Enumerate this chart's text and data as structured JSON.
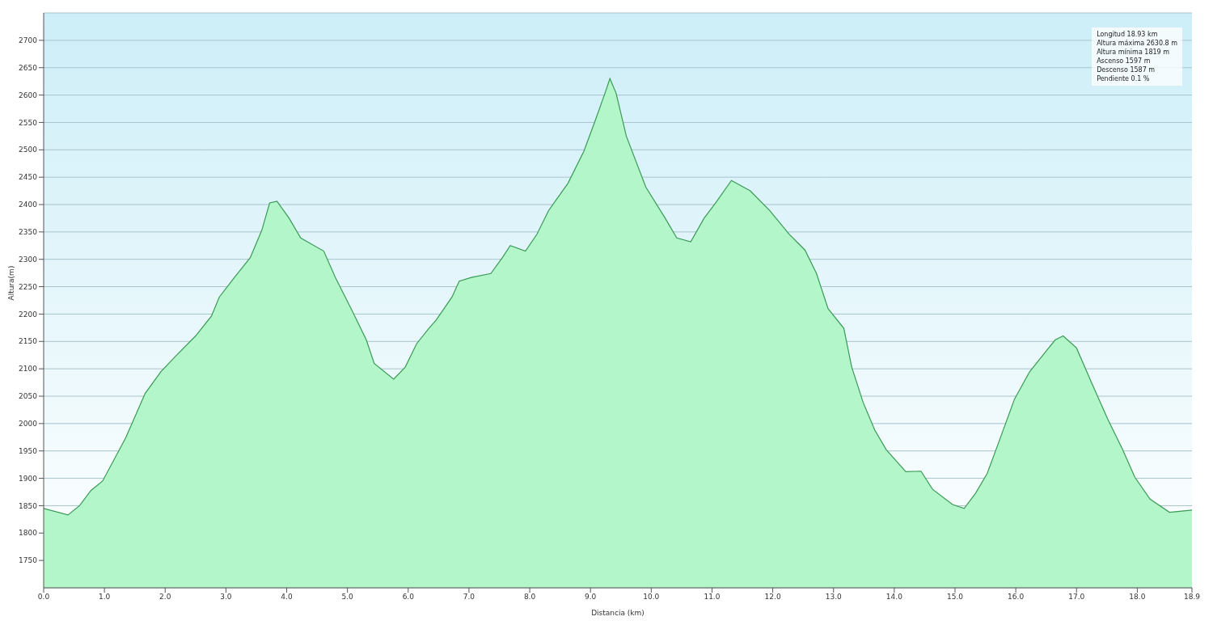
{
  "chart_data": {
    "type": "area",
    "xlabel": "Distancia  (km)",
    "ylabel": "Altura(m)",
    "annotations": [
      "Longitud 18.93 km",
      "Altura máxima 2630.8 m",
      "Altura mínima 1819 m",
      "Ascenso 1597 m",
      "Descenso 1587 m",
      "Pendiente 0.1 %"
    ],
    "x": [
      0,
      0.4,
      0.59,
      0.78,
      0.97,
      1.35,
      1.67,
      1.93,
      2.18,
      2.5,
      2.76,
      2.89,
      3.14,
      3.4,
      3.59,
      3.72,
      3.84,
      4.04,
      4.23,
      4.61,
      4.8,
      5.06,
      5.31,
      5.44,
      5.76,
      5.95,
      6.14,
      6.34,
      6.46,
      6.72,
      6.84,
      7.04,
      7.36,
      7.55,
      7.68,
      7.93,
      8.12,
      8.31,
      8.63,
      8.89,
      9.08,
      9.25,
      9.32,
      9.42,
      9.59,
      9.91,
      10.23,
      10.42,
      10.65,
      10.87,
      11.06,
      11.32,
      11.63,
      11.95,
      12.27,
      12.53,
      12.72,
      12.91,
      13.17,
      13.3,
      13.49,
      13.68,
      13.87,
      14.19,
      14.44,
      14.63,
      14.96,
      15.15,
      15.34,
      15.53,
      15.72,
      15.98,
      16.23,
      16.49,
      16.65,
      16.78,
      17.0,
      17.25,
      17.51,
      17.76,
      17.96,
      18.21,
      18.53,
      18.9
    ],
    "series": [
      {
        "color": "#3a9a55",
        "values": [
          1845,
          1833,
          1850,
          1878,
          1895,
          1974,
          2055,
          2095,
          2124,
          2160,
          2196,
          2231,
          2267,
          2303,
          2353,
          2403,
          2406,
          2375,
          2339,
          2315,
          2267,
          2210,
          2153,
          2110,
          2081,
          2103,
          2146,
          2174,
          2189,
          2231,
          2260,
          2267,
          2274,
          2303,
          2325,
          2315,
          2346,
          2389,
          2439,
          2497,
          2554,
          2607,
          2630,
          2604,
          2525,
          2432,
          2375,
          2339,
          2332,
          2375,
          2403,
          2444,
          2425,
          2389,
          2346,
          2317,
          2274,
          2210,
          2174,
          2103,
          2038,
          1988,
          1952,
          1912,
          1913,
          1880,
          1852,
          1845,
          1873,
          1909,
          1966,
          2045,
          2095,
          2131,
          2153,
          2160,
          2138,
          2074,
          2009,
          1952,
          1902,
          1862,
          1838,
          1842
        ]
      }
    ],
    "xlim": [
      0,
      18.9
    ],
    "xticks": [
      {
        "value": 0,
        "label": "0.0"
      },
      {
        "value": 1,
        "label": "1.0"
      },
      {
        "value": 2,
        "label": "2.0"
      },
      {
        "value": 3,
        "label": "3.0"
      },
      {
        "value": 4,
        "label": "4.0"
      },
      {
        "value": 5,
        "label": "5.0"
      },
      {
        "value": 6,
        "label": "6.0"
      },
      {
        "value": 7,
        "label": "7.0"
      },
      {
        "value": 8,
        "label": "8.0"
      },
      {
        "value": 9,
        "label": "9.0"
      },
      {
        "value": 10,
        "label": "10.0"
      },
      {
        "value": 11,
        "label": "11.0"
      },
      {
        "value": 12,
        "label": "12.0"
      },
      {
        "value": 13,
        "label": "13.0"
      },
      {
        "value": 14,
        "label": "14.0"
      },
      {
        "value": 15,
        "label": "15.0"
      },
      {
        "value": 16,
        "label": "16.0"
      },
      {
        "value": 17,
        "label": "17.0"
      },
      {
        "value": 18,
        "label": "18.0"
      },
      {
        "value": 18.9,
        "label": "18.9"
      }
    ],
    "ylim": [
      1700,
      2750
    ],
    "yticks": [
      1750,
      1800,
      1850,
      1900,
      1950,
      2000,
      2050,
      2100,
      2150,
      2200,
      2250,
      2300,
      2350,
      2400,
      2450,
      2500,
      2550,
      2600,
      2650,
      2700
    ],
    "grid": "y",
    "legend": false
  }
}
